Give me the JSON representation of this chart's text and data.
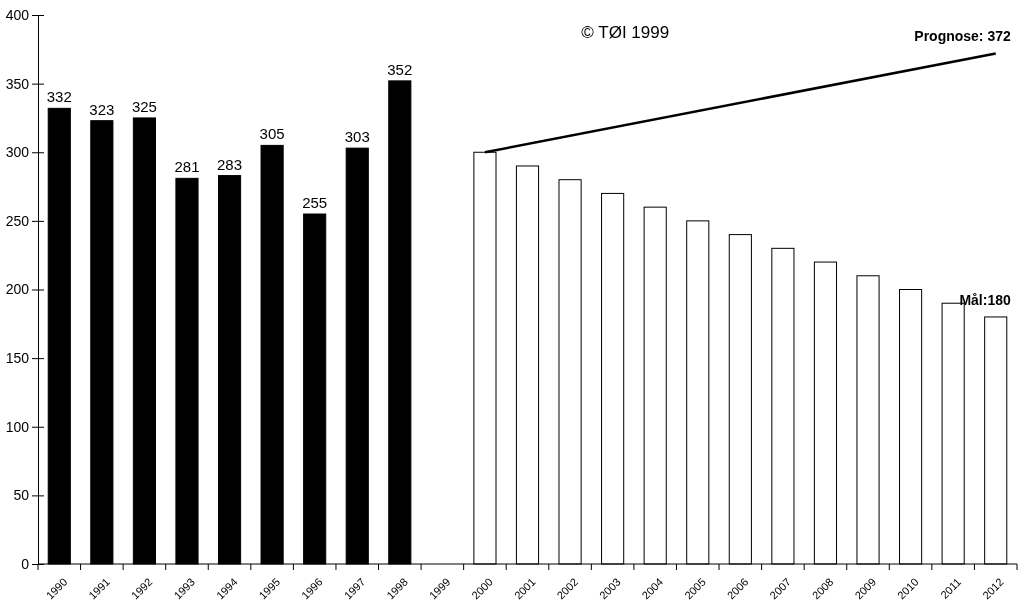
{
  "chart_data": {
    "type": "bar",
    "categories": [
      "1990",
      "1991",
      "1992",
      "1993",
      "1994",
      "1995",
      "1996",
      "1997",
      "1998",
      "1999",
      "2000",
      "2001",
      "2002",
      "2003",
      "2004",
      "2005",
      "2006",
      "2007",
      "2008",
      "2009",
      "2010",
      "2011",
      "2012"
    ],
    "series": [
      {
        "color": "#000000",
        "values": [
          332,
          323,
          325,
          281,
          283,
          305,
          255,
          303,
          352,
          null,
          null,
          null,
          null,
          null,
          null,
          null,
          null,
          null,
          null,
          null,
          null,
          null,
          null
        ],
        "value_labels": [
          "332",
          "323",
          "325",
          "281",
          "283",
          "305",
          "255",
          "303",
          "352",
          null,
          null,
          null,
          null,
          null,
          null,
          null,
          null,
          null,
          null,
          null,
          null,
          null,
          null
        ]
      },
      {
        "color": "#ffffff",
        "values": [
          null,
          null,
          null,
          null,
          null,
          null,
          null,
          null,
          null,
          null,
          300,
          290,
          280,
          270,
          260,
          250,
          240,
          230,
          220,
          210,
          200,
          190,
          180
        ]
      },
      {
        "type": "line",
        "color": "#000000",
        "values": [
          null,
          null,
          null,
          null,
          null,
          null,
          null,
          null,
          null,
          null,
          300,
          null,
          null,
          null,
          null,
          null,
          null,
          null,
          null,
          null,
          null,
          null,
          372
        ]
      }
    ],
    "ylim": [
      0,
      400
    ],
    "yticks": [
      0,
      50,
      100,
      150,
      200,
      250,
      300,
      350,
      400
    ],
    "grid": false,
    "annotations": [
      "© TØI 1999",
      {
        "text": "Prognose: 372",
        "x": "2012",
        "y": 372
      },
      {
        "text": "Mål:180",
        "x": "2012",
        "y": 180
      }
    ]
  }
}
